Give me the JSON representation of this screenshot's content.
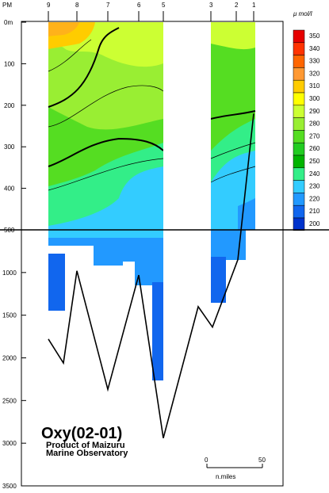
{
  "chart_data": {
    "type": "heatmap",
    "title": "Oxy(02-01)",
    "subtitle_lines": [
      "Product of Maizuru",
      "Marine Observatory"
    ],
    "top_labels": [
      "PM",
      "9",
      "8",
      "7",
      "6",
      "5",
      "3",
      "2",
      "1"
    ],
    "colorbar_unit": "μ mol/l",
    "colorbar_ticks": [
      350,
      340,
      330,
      320,
      310,
      300,
      290,
      280,
      270,
      260,
      250,
      240,
      230,
      220,
      210,
      200
    ],
    "colorbar_colors": [
      "#e60000",
      "#ff3300",
      "#ff6600",
      "#ff9933",
      "#ffcc00",
      "#ffff00",
      "#ccff33",
      "#99ee33",
      "#55dd22",
      "#22cc22",
      "#00b400",
      "#33ee88",
      "#33ccff",
      "#2299ff",
      "#1166ee",
      "#0033cc"
    ],
    "depth_axis_upper": {
      "ticks": [
        "0m",
        "100",
        "200",
        "300",
        "400",
        "500"
      ],
      "range": [
        0,
        500
      ]
    },
    "depth_axis_lower": {
      "ticks": [
        "1000",
        "1500",
        "2000",
        "2500",
        "3000",
        "3500"
      ],
      "range": [
        500,
        3500
      ]
    },
    "scale_bar": {
      "ticks": [
        "0",
        "50"
      ],
      "label": "n.miles"
    },
    "bottom_profile_depths": [
      1780,
      2060,
      980,
      2370,
      1030,
      2940,
      1400,
      1640,
      850,
      220
    ],
    "contour_levels_bold": [
      300,
      250
    ]
  }
}
